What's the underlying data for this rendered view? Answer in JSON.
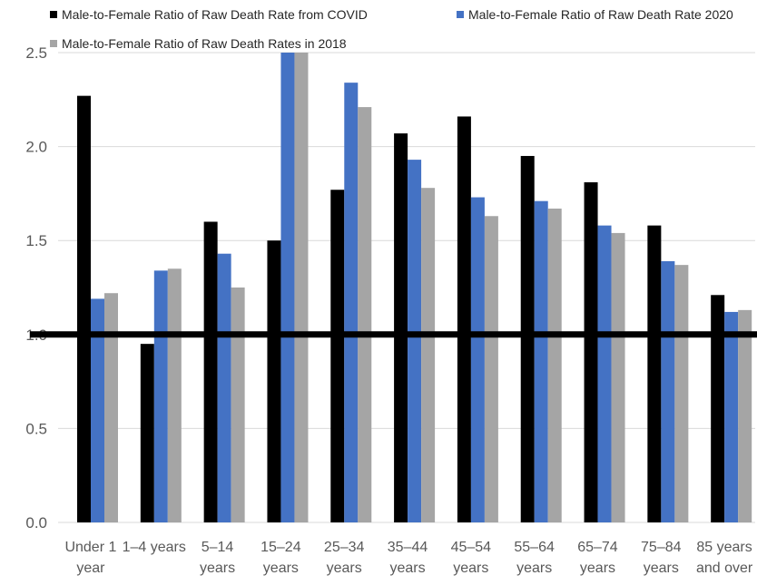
{
  "chart_data": {
    "type": "bar",
    "categories": [
      [
        "Under 1",
        "year"
      ],
      [
        "1–4 years"
      ],
      [
        "5–14",
        "years"
      ],
      [
        "15–24",
        "years"
      ],
      [
        "25–34",
        "years"
      ],
      [
        "35–44",
        "years"
      ],
      [
        "45–54",
        "years"
      ],
      [
        "55–64",
        "years"
      ],
      [
        "65–74",
        "years"
      ],
      [
        "75–84",
        "years"
      ],
      [
        "85 years",
        "and over"
      ]
    ],
    "series": [
      {
        "name": "Male-to-Female Ratio of Raw Death Rate from COVID",
        "color": "#000000",
        "values": [
          2.27,
          0.95,
          1.6,
          1.5,
          1.77,
          2.07,
          2.16,
          1.95,
          1.81,
          1.58,
          1.21
        ]
      },
      {
        "name": "Male-to-Female Ratio of Raw Death Rate 2020",
        "color": "#4472C4",
        "values": [
          1.19,
          1.34,
          1.43,
          2.5,
          2.34,
          1.93,
          1.73,
          1.71,
          1.58,
          1.39,
          1.12
        ]
      },
      {
        "name": "Male-to-Female Ratio of Raw Death Rates in 2018",
        "color": "#A5A5A5",
        "values": [
          1.22,
          1.35,
          1.25,
          2.5,
          2.21,
          1.78,
          1.63,
          1.67,
          1.54,
          1.37,
          1.13
        ]
      }
    ],
    "y_ticks": [
      "0.0",
      "0.5",
      "1.0",
      "1.5",
      "2.0",
      "2.5"
    ],
    "ylim": [
      0,
      2.5
    ],
    "reference_line": 1.0,
    "grid": true,
    "legend_position": "top"
  }
}
